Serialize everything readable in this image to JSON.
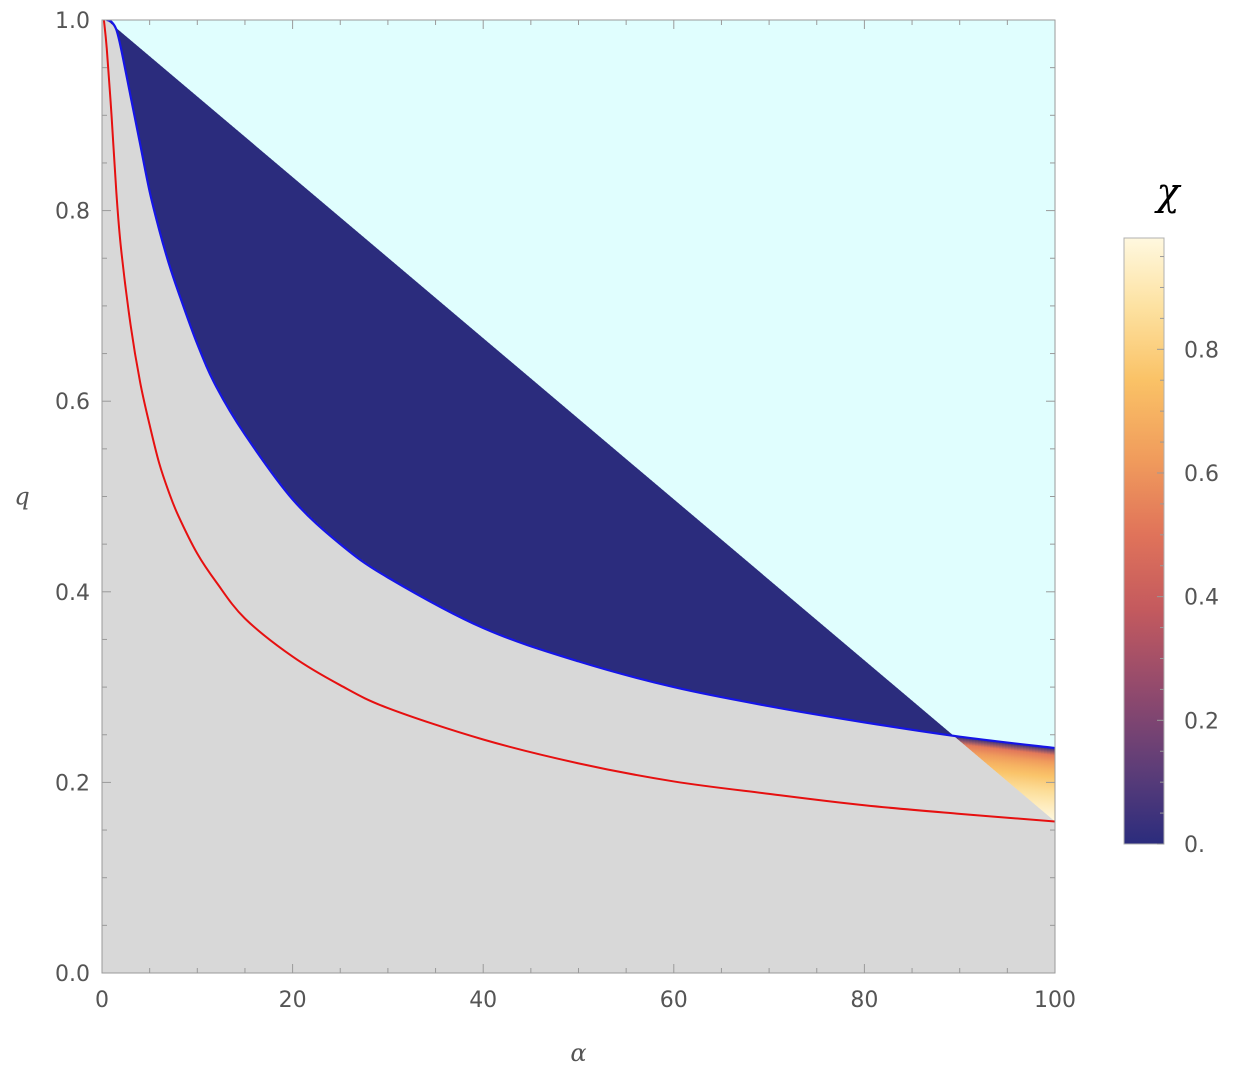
{
  "chart_data": {
    "type": "area",
    "title": "",
    "xlabel": "α",
    "ylabel": "q",
    "xlim": [
      0,
      100
    ],
    "ylim": [
      0,
      1
    ],
    "x_ticks": [
      "0",
      "20",
      "40",
      "60",
      "80",
      "100"
    ],
    "y_ticks": [
      "0.0",
      "0.2",
      "0.4",
      "0.6",
      "0.8",
      "1.0"
    ],
    "grid": false,
    "regions": {
      "above_upper_color": "#e0fefe",
      "below_lower_color": "#d8d8d8"
    },
    "upper_boundary": {
      "color": "#1515e6",
      "x": [
        0.5,
        1,
        1.5,
        2,
        3,
        4,
        5,
        6,
        7,
        8,
        10,
        12,
        15,
        20,
        25,
        30,
        40,
        50,
        60,
        70,
        80,
        90,
        100
      ],
      "y": [
        1.0,
        0.998,
        0.99,
        0.97,
        0.92,
        0.87,
        0.82,
        0.78,
        0.745,
        0.715,
        0.66,
        0.615,
        0.565,
        0.497,
        0.45,
        0.415,
        0.362,
        0.327,
        0.3,
        0.28,
        0.263,
        0.248,
        0.236
      ]
    },
    "lower_boundary": {
      "color": "#e61010",
      "x": [
        0.2,
        0.5,
        1,
        1.5,
        2,
        3,
        4,
        5,
        6,
        7,
        8,
        10,
        12,
        15,
        20,
        25,
        30,
        40,
        50,
        60,
        70,
        80,
        90,
        100
      ],
      "y": [
        1.0,
        0.97,
        0.9,
        0.82,
        0.76,
        0.68,
        0.62,
        0.575,
        0.535,
        0.505,
        0.48,
        0.44,
        0.41,
        0.372,
        0.332,
        0.302,
        0.278,
        0.245,
        0.22,
        0.201,
        0.188,
        0.176,
        0.167,
        0.159
      ]
    },
    "colorbar": {
      "title": "χ",
      "ticks": [
        {
          "value": 0.0,
          "label": "0."
        },
        {
          "value": 0.2,
          "label": "0.2"
        },
        {
          "value": 0.4,
          "label": "0.4"
        },
        {
          "value": 0.6,
          "label": "0.6"
        },
        {
          "value": 0.8,
          "label": "0.8"
        }
      ],
      "min": 0,
      "max": 0.98,
      "stops": [
        {
          "value": 0.0,
          "color": "#2b2c7d"
        },
        {
          "value": 0.12,
          "color": "#5d3d78"
        },
        {
          "value": 0.25,
          "color": "#924a6d"
        },
        {
          "value": 0.38,
          "color": "#c45a5e"
        },
        {
          "value": 0.5,
          "color": "#e0735a"
        },
        {
          "value": 0.62,
          "color": "#f09b5c"
        },
        {
          "value": 0.75,
          "color": "#fac266"
        },
        {
          "value": 0.87,
          "color": "#fde2a2"
        },
        {
          "value": 0.98,
          "color": "#fff8df"
        }
      ]
    }
  }
}
